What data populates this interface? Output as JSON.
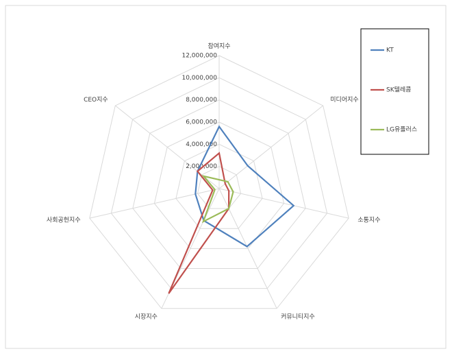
{
  "chart_data": {
    "type": "radar",
    "categories": [
      "참여지수",
      "미디어지수",
      "소통지수",
      "커뮤니티지수",
      "시장지수",
      "사회공헌지수",
      "CEO지수"
    ],
    "ylim": [
      0,
      12000000
    ],
    "yticks": [
      {
        "value": 2000000,
        "label": "2,000,000"
      },
      {
        "value": 4000000,
        "label": "4,000,000"
      },
      {
        "value": 6000000,
        "label": "6,000,000"
      },
      {
        "value": 8000000,
        "label": "8,000,000"
      },
      {
        "value": 10000000,
        "label": "10,000,000"
      },
      {
        "value": 12000000,
        "label": "12,000,000"
      }
    ],
    "grid": true,
    "legend": "right",
    "series": [
      {
        "name": "KT",
        "color": "#4f81bd",
        "values": [
          5600000,
          3300000,
          6900000,
          5800000,
          3200000,
          2200000,
          2500000
        ]
      },
      {
        "name": "SK텔레콤",
        "color": "#c0504d",
        "values": [
          3200000,
          700000,
          900000,
          2000000,
          10500000,
          600000,
          2500000
        ]
      },
      {
        "name": "LG유플러스",
        "color": "#9bbb59",
        "values": [
          800000,
          1000000,
          1300000,
          2000000,
          3300000,
          400000,
          1800000
        ]
      }
    ]
  }
}
